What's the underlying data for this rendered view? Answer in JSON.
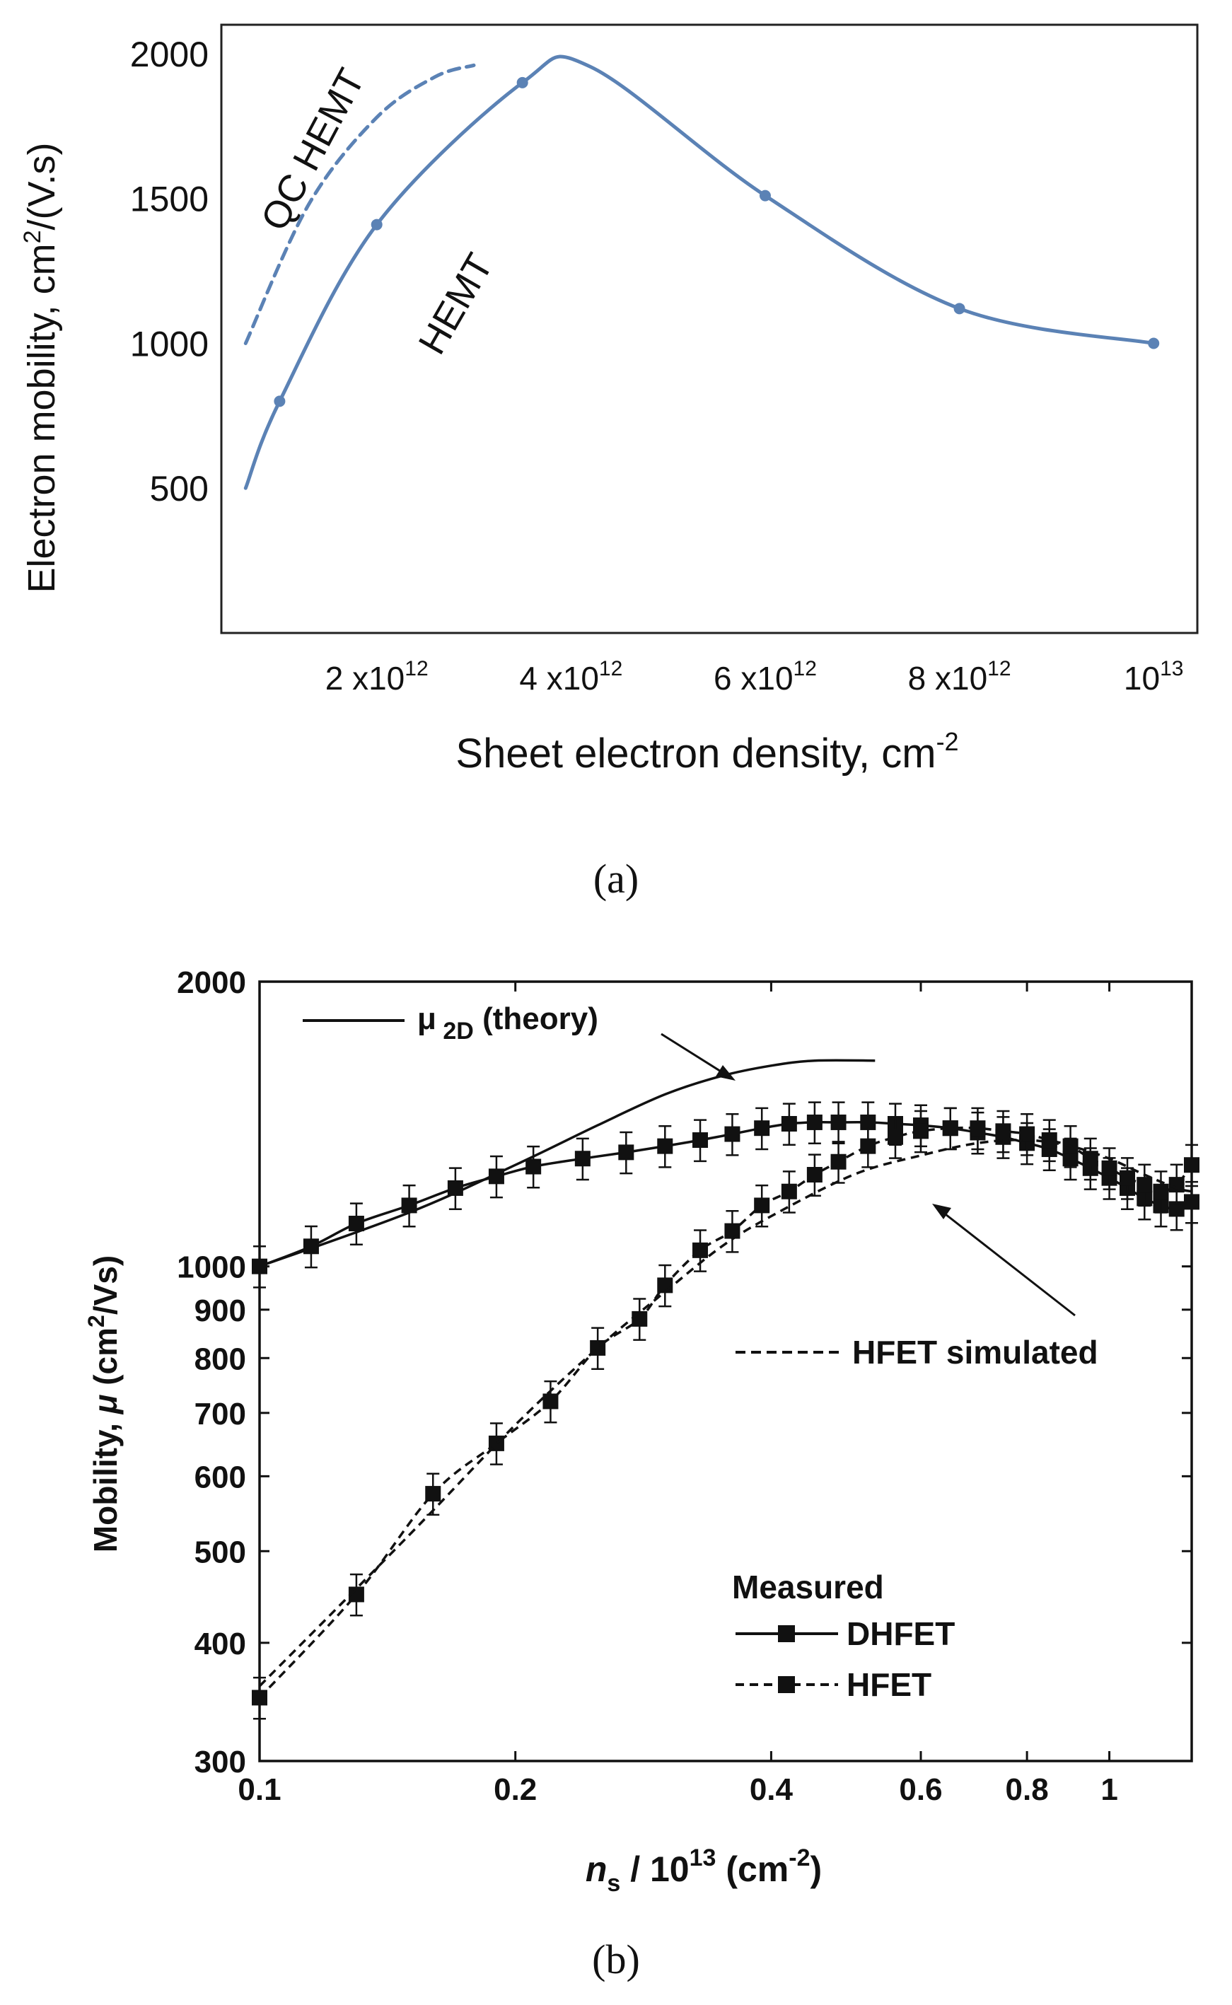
{
  "chart_data": [
    {
      "panel": "a",
      "type": "line",
      "caption": "(a)",
      "xlabel": "Sheet electron density,  cm",
      "xlabel_sup": "-2",
      "ylabel": "Electron mobility,  cm",
      "ylabel_sup": "2",
      "ylabel_tail": "/(V.s)",
      "xlim": [
        0.4,
        10.45
      ],
      "ylim": [
        0,
        2100
      ],
      "yticks": [
        {
          "value": 500,
          "label": "500"
        },
        {
          "value": 1000,
          "label": "1000"
        },
        {
          "value": 1500,
          "label": "1500"
        },
        {
          "value": 2000,
          "label": "2000"
        }
      ],
      "xticks": [
        {
          "value": 2,
          "base": "2 x10",
          "exp": "12"
        },
        {
          "value": 4,
          "base": "4 x10",
          "exp": "12"
        },
        {
          "value": 6,
          "base": "6 x10",
          "exp": "12"
        },
        {
          "value": 8,
          "base": "8 x10",
          "exp": "12"
        },
        {
          "value": 10,
          "base": "10",
          "exp": "13"
        }
      ],
      "x_unit_note": "x in units of 10^12 cm^-2",
      "series": [
        {
          "name": "HEMT",
          "style": "solid",
          "color": "#5b82b5",
          "curve": [
            [
              0.65,
              500
            ],
            [
              1.0,
              800
            ],
            [
              2.0,
              1410
            ],
            [
              3.5,
              1900
            ],
            [
              4.2,
              1955
            ],
            [
              6.0,
              1510
            ],
            [
              8.0,
              1120
            ],
            [
              10.0,
              1000
            ]
          ],
          "markers": [
            [
              1.0,
              800
            ],
            [
              2.0,
              1410
            ],
            [
              3.5,
              1900
            ],
            [
              6.0,
              1510
            ],
            [
              8.0,
              1120
            ],
            [
              10.0,
              1000
            ]
          ]
        },
        {
          "name": "QC HEMT",
          "style": "dashed",
          "color": "#5b82b5",
          "curve": [
            [
              0.65,
              1000
            ],
            [
              1.3,
              1480
            ],
            [
              2.0,
              1780
            ],
            [
              2.6,
              1920
            ],
            [
              3.0,
              1960
            ]
          ]
        }
      ],
      "annotations": [
        {
          "text": "QC HEMT",
          "near": "dashed curve, top-left, rotated"
        },
        {
          "text": "HEMT",
          "near": "solid curve, rotated"
        }
      ]
    },
    {
      "panel": "b",
      "type": "line",
      "caption": "(b)",
      "xscale": "log",
      "yscale": "log",
      "xlim": [
        0.1,
        1.25
      ],
      "ylim": [
        300,
        2000
      ],
      "xlabel_main": "n",
      "xlabel_sub": "s",
      "xlabel_rest": " / 10",
      "xlabel_exp": "13",
      "xlabel_unit": " (cm",
      "xlabel_unit_exp": "-2",
      "xlabel_close": ")",
      "ylabel_main": "Mobility, ",
      "ylabel_mu": "μ",
      "ylabel_unit": " (cm",
      "ylabel_unit_exp": "2",
      "ylabel_tail": "/Vs)",
      "xticks": [
        {
          "value": 0.1,
          "label": "0.1"
        },
        {
          "value": 0.2,
          "label": "0.2"
        },
        {
          "value": 0.4,
          "label": "0.4"
        },
        {
          "value": 0.6,
          "label": "0.6"
        },
        {
          "value": 0.8,
          "label": "0.8"
        },
        {
          "value": 1.0,
          "label": "1"
        }
      ],
      "yticks": [
        {
          "value": 300,
          "label": "300"
        },
        {
          "value": 400,
          "label": "400"
        },
        {
          "value": 500,
          "label": "500"
        },
        {
          "value": 600,
          "label": "600"
        },
        {
          "value": 700,
          "label": "700"
        },
        {
          "value": 800,
          "label": "800"
        },
        {
          "value": 900,
          "label": "900"
        },
        {
          "value": 1000,
          "label": "1000"
        },
        {
          "value": 2000,
          "label": "2000"
        }
      ],
      "series": [
        {
          "name": "μ2D (theory)",
          "style": "solid-line",
          "x": [
            0.1,
            0.15,
            0.2,
            0.25,
            0.3,
            0.35,
            0.4,
            0.45,
            0.53
          ],
          "y": [
            1000,
            1140,
            1280,
            1410,
            1520,
            1590,
            1630,
            1650,
            1650
          ]
        },
        {
          "name": "DHFET",
          "style": "solid-markers",
          "x": [
            0.1,
            0.115,
            0.13,
            0.15,
            0.17,
            0.19,
            0.21,
            0.24,
            0.27,
            0.3,
            0.33,
            0.36,
            0.39,
            0.42,
            0.45,
            0.48,
            0.52,
            0.56,
            0.6,
            0.65,
            0.7,
            0.75,
            0.8,
            0.85,
            0.9,
            0.95,
            1.0,
            1.05,
            1.1,
            1.15,
            1.2,
            1.25
          ],
          "y": [
            1000,
            1050,
            1110,
            1160,
            1210,
            1245,
            1275,
            1300,
            1320,
            1340,
            1360,
            1380,
            1400,
            1415,
            1420,
            1420,
            1420,
            1415,
            1410,
            1400,
            1385,
            1370,
            1350,
            1330,
            1300,
            1270,
            1240,
            1210,
            1180,
            1160,
            1150,
            1170
          ],
          "error_frac": 0.05
        },
        {
          "name": "HFET",
          "style": "dashed-markers",
          "x": [
            0.1,
            0.13,
            0.16,
            0.19,
            0.22,
            0.25,
            0.28,
            0.3,
            0.33,
            0.36,
            0.39,
            0.42,
            0.45,
            0.48,
            0.52,
            0.56,
            0.6,
            0.65,
            0.7,
            0.75,
            0.8,
            0.85,
            0.9,
            0.95,
            1.0,
            1.05,
            1.1,
            1.15,
            1.2,
            1.25
          ],
          "y": [
            350,
            450,
            575,
            650,
            720,
            820,
            880,
            955,
            1040,
            1090,
            1160,
            1200,
            1250,
            1290,
            1340,
            1370,
            1390,
            1400,
            1400,
            1390,
            1380,
            1360,
            1340,
            1300,
            1270,
            1240,
            1220,
            1200,
            1220,
            1280
          ],
          "error_frac": 0.05
        },
        {
          "name": "HFET simulated",
          "style": "dashed-line",
          "x": [
            0.1,
            0.15,
            0.2,
            0.25,
            0.3,
            0.35,
            0.4,
            0.5,
            0.6,
            0.7,
            0.8,
            0.9,
            1.0,
            1.1,
            1.2,
            1.25
          ],
          "y": [
            360,
            520,
            680,
            820,
            940,
            1050,
            1130,
            1250,
            1310,
            1350,
            1360,
            1340,
            1300,
            1250,
            1210,
            1200
          ]
        }
      ],
      "legend": {
        "title": "Measured",
        "entries": [
          "DHFET",
          "HFET"
        ],
        "placement": "bottom-right"
      },
      "annotations": [
        {
          "label_main": "μ",
          "label_sub": " 2D",
          "label_tail": " (theory)",
          "target": "theory curve"
        },
        {
          "text": "HFET simulated",
          "target": "dashed simulated curve"
        }
      ]
    }
  ]
}
